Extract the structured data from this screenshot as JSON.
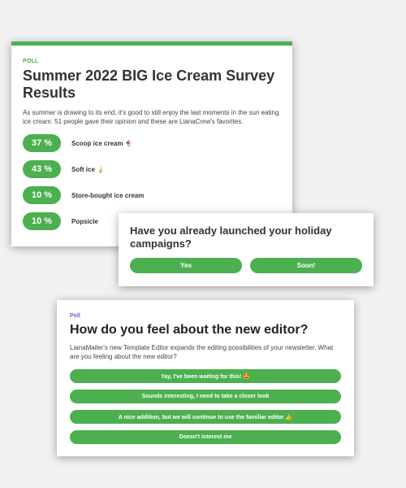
{
  "survey_card": {
    "tag": "POLL",
    "title": "Summer 2022 BIG Ice Cream Survey Results",
    "description": "As summer is drawing to its end, it's good to still enjoy the last moments in the sun eating ice cream. 51 people gave their opinion and these are LianaCrew's favorites.",
    "results": [
      {
        "percent": "37 %",
        "label": "Scoop ice cream 🍨"
      },
      {
        "percent": "43 %",
        "label": "Soft ice 🍦"
      },
      {
        "percent": "10 %",
        "label": "Store-bought ice cream"
      },
      {
        "percent": "10 %",
        "label": "Popsicle"
      }
    ]
  },
  "holiday_card": {
    "question": "Have you already launched your holiday campaigns?",
    "buttons": [
      "Yes",
      "Soon!"
    ]
  },
  "editor_card": {
    "tag": "Poll",
    "question": "How do you feel about the new editor?",
    "description": "LianaMailer's new Template Editor expands the editing possibilities of your newsletter. What are you feeling about the new editor?",
    "options": [
      "Yay, I've been waiting for this! 🤩",
      "Sounds interesting, I need to take a closer look",
      "A nice addition, but we will continue to use the familiar editor 👍",
      "Doesn't interest me"
    ]
  },
  "colors": {
    "accent_green": "#4caf50",
    "poll_tag_purple": "#6a5acd",
    "background": "#f1f1f1"
  }
}
